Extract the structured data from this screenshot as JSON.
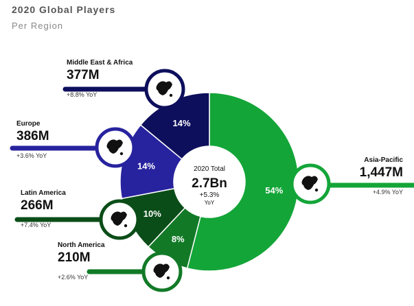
{
  "title": "2020 Global Players",
  "subtitle": "Per Region",
  "center": {
    "label": "2020 Total",
    "value": "2.7Bn",
    "growth": "+5.3%",
    "growth_unit": "YoY"
  },
  "colors": {
    "asia_pacific": "#13a538",
    "north_america": "#127a27",
    "latin_america": "#0b4d18",
    "europe": "#27239e",
    "middle_east_africa": "#0d0f5c"
  },
  "chart_data": {
    "type": "pie",
    "title": "2020 Global Players",
    "subtitle": "Per Region",
    "slices": [
      {
        "name": "Asia-Pacific",
        "percent": 54,
        "percent_label": "54%",
        "players": "1,447M",
        "yoy": "+4.9% YoY",
        "icon": "asia-pacific-map-icon",
        "color": "#13a538"
      },
      {
        "name": "North America",
        "percent": 8,
        "percent_label": "8%",
        "players": "210M",
        "yoy": "+2.6% YoY",
        "icon": "north-america-map-icon",
        "color": "#127a27"
      },
      {
        "name": "Latin America",
        "percent": 10,
        "percent_label": "10%",
        "players": "266M",
        "yoy": "+7.4% YoY",
        "icon": "latin-america-map-icon",
        "color": "#0b4d18"
      },
      {
        "name": "Europe",
        "percent": 14,
        "percent_label": "14%",
        "players": "386M",
        "yoy": "+3.6% YoY",
        "icon": "europe-map-icon",
        "color": "#27239e"
      },
      {
        "name": "Middle East & Africa",
        "percent": 14,
        "percent_label": "14%",
        "players": "377M",
        "yoy": "+8.8% YoY",
        "icon": "middle-east-africa-map-icon",
        "color": "#0d0f5c"
      }
    ]
  }
}
